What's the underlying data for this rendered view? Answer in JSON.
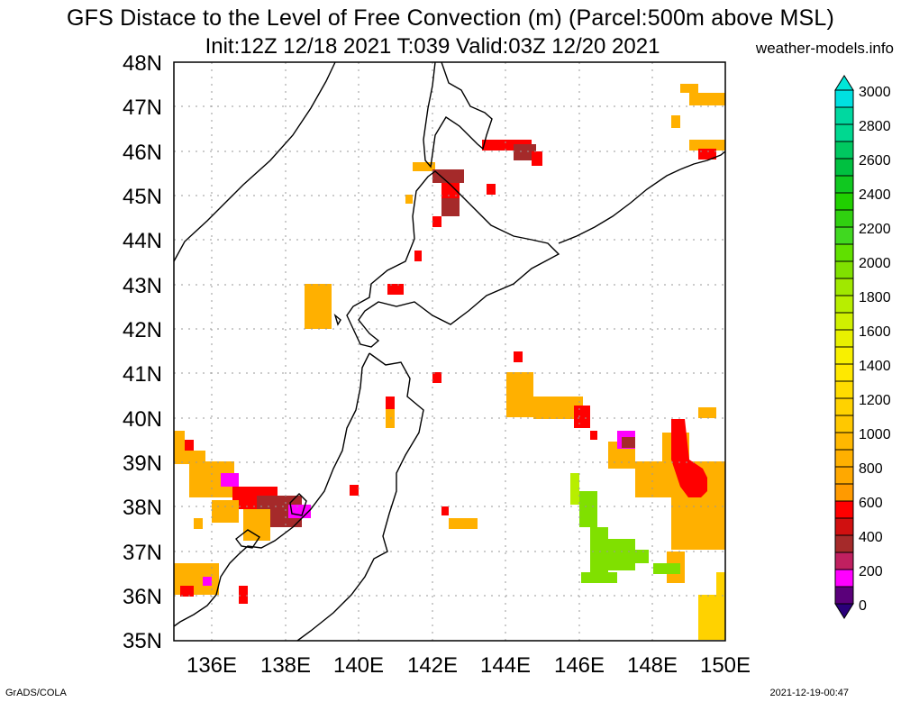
{
  "title": {
    "line1": "GFS Distace to the Level of Free Convection (m) (Parcel:500m above MSL)",
    "line2": "Init:12Z 12/18 2021 T:039 Valid:03Z 12/20 2021",
    "site": "weather-models.info"
  },
  "footer": {
    "left": "GrADS/COLA",
    "right": "2021-12-19-00:47"
  },
  "map": {
    "lat_labels": [
      "48N",
      "47N",
      "46N",
      "45N",
      "44N",
      "43N",
      "42N",
      "41N",
      "40N",
      "39N",
      "38N",
      "37N",
      "36N",
      "35N"
    ],
    "lon_labels": [
      "136E",
      "138E",
      "140E",
      "142E",
      "144E",
      "146E",
      "148E",
      "150E"
    ],
    "lat_range": [
      35,
      48
    ],
    "lon_range": [
      135,
      150
    ],
    "grid": true
  },
  "colorbar": {
    "labels": [
      "3000",
      "2800",
      "2600",
      "2400",
      "2200",
      "2000",
      "1800",
      "1600",
      "1400",
      "1200",
      "1000",
      "800",
      "600",
      "400",
      "200",
      "0"
    ],
    "colors": {
      "c0": "#2a007a",
      "c200": "#ff00ff",
      "c400": "#a52a2a",
      "c600": "#ff0000",
      "c800": "#ff9a00",
      "c1000": "#ffb000",
      "c1200": "#ffd200",
      "c1400": "#ffe800",
      "c1600": "#e8f000",
      "c1800": "#b8ee00",
      "c2000": "#80e000",
      "c2200": "#40d020",
      "c2400": "#20d000",
      "c2600": "#00c040",
      "c2800": "#00d8a0",
      "c3000": "#00e8d8"
    }
  }
}
